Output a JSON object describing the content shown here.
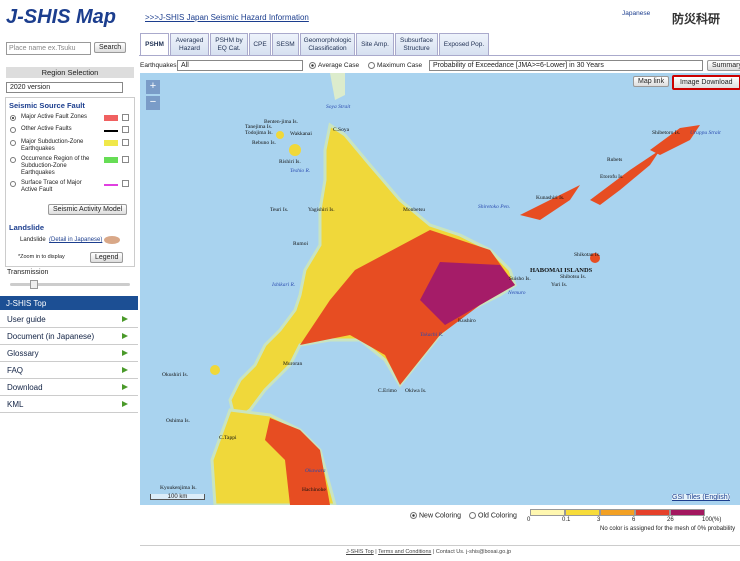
{
  "header": {
    "logo": "J-SHIS Map",
    "site_link": ">>>J-SHIS Japan Seismic Hazard Information",
    "language": "Japanese",
    "org": "防災科研"
  },
  "search": {
    "placeholder": "Place name ex.Tsuku",
    "button": "Search"
  },
  "region": {
    "title": "Region Selection",
    "version": "2020 version"
  },
  "fault_panel": {
    "title": "Seismic Source Fault",
    "items": [
      "Major Active Fault Zones",
      "Other Active Faults",
      "Major Subduction-Zone Earthquakes",
      "Occurrence Region of the Subduction-Zone Earthquakes",
      "Surface Trace of Major Active Fault"
    ],
    "button": "Seismic Activity Model",
    "landslide_title": "Landslide",
    "landslide_label": "Landslide",
    "landslide_link": "(Detail in Japanese)",
    "zoom_note": "*Zoom in to display",
    "legend_button": "Legend",
    "transmission": "Transmission"
  },
  "menu": {
    "title": "J-SHIS Top",
    "items": [
      "User guide",
      "Document (in Japanese)",
      "Glossary",
      "FAQ",
      "Download",
      "KML"
    ]
  },
  "tabs": [
    "PSHM",
    "Averaged Hazard",
    "PSHM by EQ Cat.",
    "CPE",
    "SESM",
    "Geomorphologic Classification",
    "Site Amp.",
    "Subsurface Structure",
    "Exposed Pop."
  ],
  "controls": {
    "earthquakes_label": "Earthquakes",
    "earthquakes_value": "All",
    "average": "Average Case",
    "maximum": "Maximum Case",
    "probability": "Probability of Exceedance [JMA>=6-Lower] in 30 Years",
    "summary": "Summary"
  },
  "map": {
    "map_link": "Map link",
    "image_download": "Image Download",
    "zoom_in": "+",
    "zoom_out": "−",
    "scale": "100 km",
    "tiles": "GSI Tiles (English)",
    "labels": [
      "Soya Strait",
      "Benten-jima Is.",
      "Tanejima Is.",
      "Todojima Is.",
      "Wakkanai",
      "C.Soya",
      "Rebuno Is.",
      "Rishiri Is.",
      "Teshio R.",
      "Teuri Is.",
      "Yagishiri Is.",
      "Monbetsu",
      "Rumoi",
      "Ishikari R.",
      "Okushiri Is.",
      "Muroran",
      "C.Erimo",
      "Okiwa Is.",
      "Kushiro",
      "Tokachi R.",
      "Nemuro",
      "Shiretoko Pen.",
      "Kunashiri Is.",
      "Etorofu Is.",
      "Shikotan Is.",
      "HABOMAI ISLANDS",
      "Suisho Is.",
      "Yuri Is.",
      "Shibotsu Is.",
      "Rubets",
      "Shibetoro Is.",
      "Oshima Is.",
      "C.Tappi",
      "Okawara",
      "Hachinohe",
      "Kyuukenjima Is.",
      "Uruppu Strait"
    ]
  },
  "legend": {
    "new_coloring": "New Coloring",
    "old_coloring": "Old Coloring",
    "labels": [
      "0",
      "0.1",
      "3",
      "6",
      "26",
      "100(%)"
    ],
    "colors": [
      "#fff7b0",
      "#f7dc3a",
      "#f2a023",
      "#e5402a",
      "#a3175f"
    ],
    "note": "No color is assigned for the mesh of 0% probability"
  },
  "footer": {
    "top": "J-SHIS Top",
    "terms": "Terms and Conditions",
    "contact": "Contact Us.",
    "email": "j-shis@bosai.go.jp"
  }
}
